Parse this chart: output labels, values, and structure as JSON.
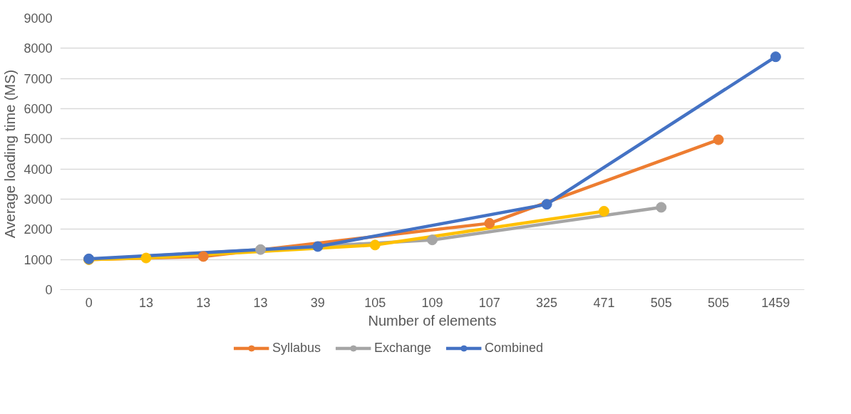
{
  "chart_data": {
    "type": "line",
    "xlabel": "Number of elements",
    "ylabel": "Average loading time (MS)",
    "categories": [
      "0",
      "13",
      "13",
      "13",
      "39",
      "105",
      "109",
      "107",
      "325",
      "471",
      "505",
      "505",
      "1459"
    ],
    "ylim": [
      0,
      9000
    ],
    "yticks": [
      0,
      1000,
      2000,
      3000,
      4000,
      5000,
      6000,
      7000,
      8000,
      9000
    ],
    "grid": "y",
    "legend": "bottom",
    "marker": "circle",
    "line_style": "solid",
    "series": [
      {
        "name": "Syllabus",
        "color": "#ed7d31",
        "values": [
          1000,
          null,
          1100,
          null,
          null,
          null,
          null,
          2200,
          null,
          null,
          null,
          4970,
          null
        ]
      },
      {
        "name": "Exchange",
        "color": "#a5a5a5",
        "values": [
          1000,
          null,
          null,
          1330,
          null,
          null,
          1650,
          null,
          null,
          null,
          2730,
          null,
          null
        ]
      },
      {
        "color": "#ffc000",
        "values": [
          1000,
          1050,
          null,
          null,
          null,
          1480,
          null,
          null,
          null,
          2600,
          null,
          null,
          null
        ]
      },
      {
        "name": "Combined",
        "color": "#4472c4",
        "values": [
          1020,
          null,
          null,
          null,
          1430,
          null,
          null,
          null,
          2830,
          null,
          null,
          null,
          7720
        ]
      }
    ]
  }
}
